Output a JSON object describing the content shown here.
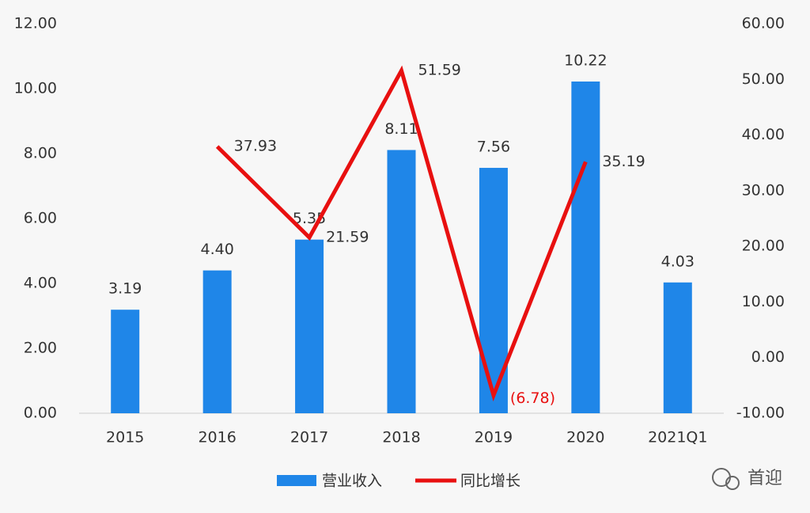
{
  "chart_data": {
    "type": "bar_line",
    "categories": [
      "2015",
      "2016",
      "2017",
      "2018",
      "2019",
      "2020",
      "2021Q1"
    ],
    "series": [
      {
        "name": "营业收入",
        "type": "bar",
        "color": "#1f86e8",
        "values": [
          3.19,
          4.4,
          5.35,
          8.11,
          7.56,
          10.22,
          4.03
        ],
        "value_labels": [
          "3.19",
          "4.40",
          "5.35",
          "8.11",
          "7.56",
          "10.22",
          "4.03"
        ]
      },
      {
        "name": "同比增长",
        "type": "line",
        "axis": "y2",
        "color": "#e81010",
        "values": [
          null,
          37.93,
          21.59,
          51.59,
          -6.78,
          35.19,
          null
        ],
        "value_labels": [
          null,
          "37.93",
          "21.59",
          "51.59",
          "(6.78)",
          "35.19",
          null
        ]
      }
    ],
    "ylim": [
      0,
      12
    ],
    "yticks": [
      {
        "value": 0,
        "label": "0.00"
      },
      {
        "value": 2,
        "label": "2.00"
      },
      {
        "value": 4,
        "label": "4.00"
      },
      {
        "value": 6,
        "label": "6.00"
      },
      {
        "value": 8,
        "label": "8.00"
      },
      {
        "value": 10,
        "label": "10.00"
      },
      {
        "value": 12,
        "label": "12.00"
      }
    ],
    "y2lim": [
      -10,
      60
    ],
    "y2ticks": [
      {
        "value": -10,
        "label": "-10.00"
      },
      {
        "value": 0,
        "label": "0.00"
      },
      {
        "value": 10,
        "label": "10.00"
      },
      {
        "value": 20,
        "label": "20.00"
      },
      {
        "value": 30,
        "label": "30.00"
      },
      {
        "value": 40,
        "label": "40.00"
      },
      {
        "value": 50,
        "label": "50.00"
      },
      {
        "value": 60,
        "label": "60.00"
      }
    ],
    "legend": "bottom",
    "watermark": "首迎"
  }
}
